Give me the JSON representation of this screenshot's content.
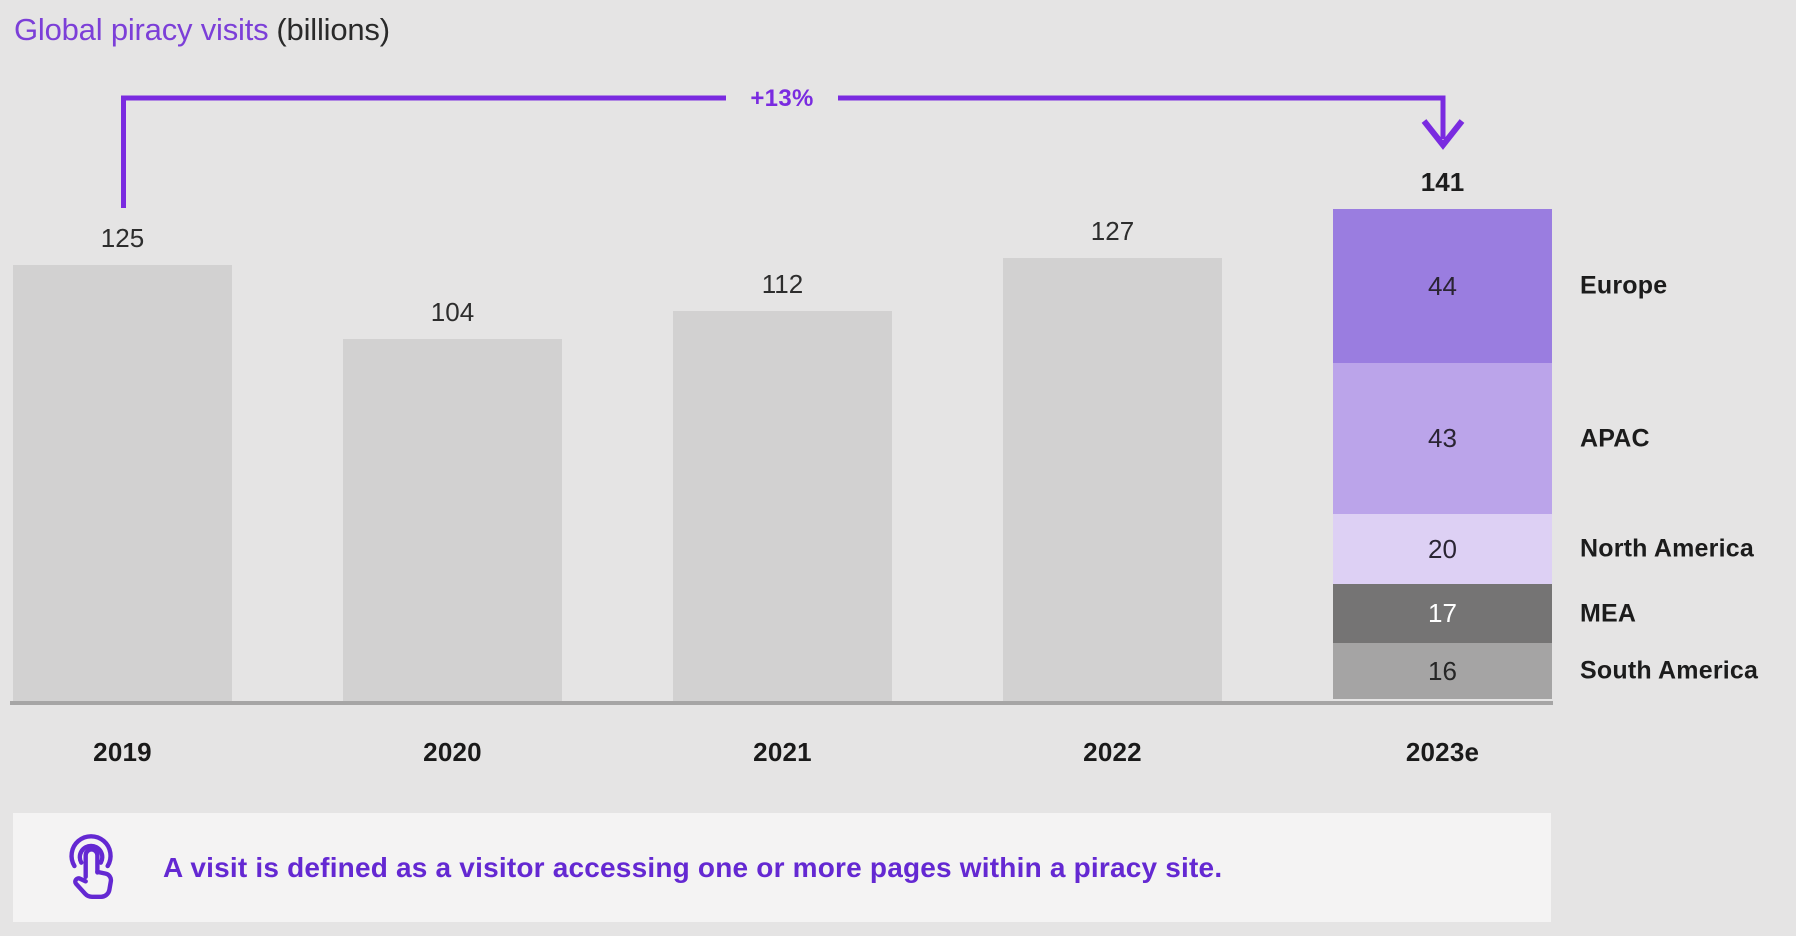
{
  "title": {
    "main": "Global piracy visits",
    "suffix": "(billions)"
  },
  "annotation": {
    "growth_label": "+13%",
    "from_category": "2019",
    "to_category": "2023e"
  },
  "note": {
    "icon": "tap-icon",
    "text": "A visit is defined as a visitor accessing one or more pages within a piracy site."
  },
  "colors": {
    "background": "#e5e4e4",
    "bar_gray": "#d2d1d1",
    "axis_line": "#a6a5a5",
    "accent_purple": "#7a2be0",
    "title_purple": "#7c3fd8",
    "note_purple": "#6428d2",
    "note_background": "#f4f3f3"
  },
  "chart_data": {
    "type": "bar",
    "title": "Global piracy visits (billions)",
    "unit": "billions of visits per year",
    "categories": [
      "2019",
      "2020",
      "2021",
      "2022",
      "2023e"
    ],
    "totals": [
      125,
      104,
      112,
      127,
      141
    ],
    "growth_annotation": "+13% from 2019 to 2023e",
    "legend_position": "right of stacked 2023e bar",
    "bars": [
      {
        "category": "2019",
        "total": 125
      },
      {
        "category": "2020",
        "total": 104
      },
      {
        "category": "2021",
        "total": 112
      },
      {
        "category": "2022",
        "total": 127
      },
      {
        "category": "2023e",
        "total": 141,
        "emphasized": true,
        "segments": [
          {
            "name": "Europe",
            "value": 44,
            "color": "#9a7de0",
            "text_color": "#2a2433"
          },
          {
            "name": "APAC",
            "value": 43,
            "color": "#bba4ea",
            "text_color": "#2a2433"
          },
          {
            "name": "North America",
            "value": 20,
            "color": "#ddd0f4",
            "text_color": "#2a2433"
          },
          {
            "name": "MEA",
            "value": 17,
            "color": "#757474",
            "text_color": "#ffffff"
          },
          {
            "name": "South America",
            "value": 16,
            "color": "#a5a4a4",
            "text_color": "#262626"
          }
        ]
      }
    ]
  }
}
